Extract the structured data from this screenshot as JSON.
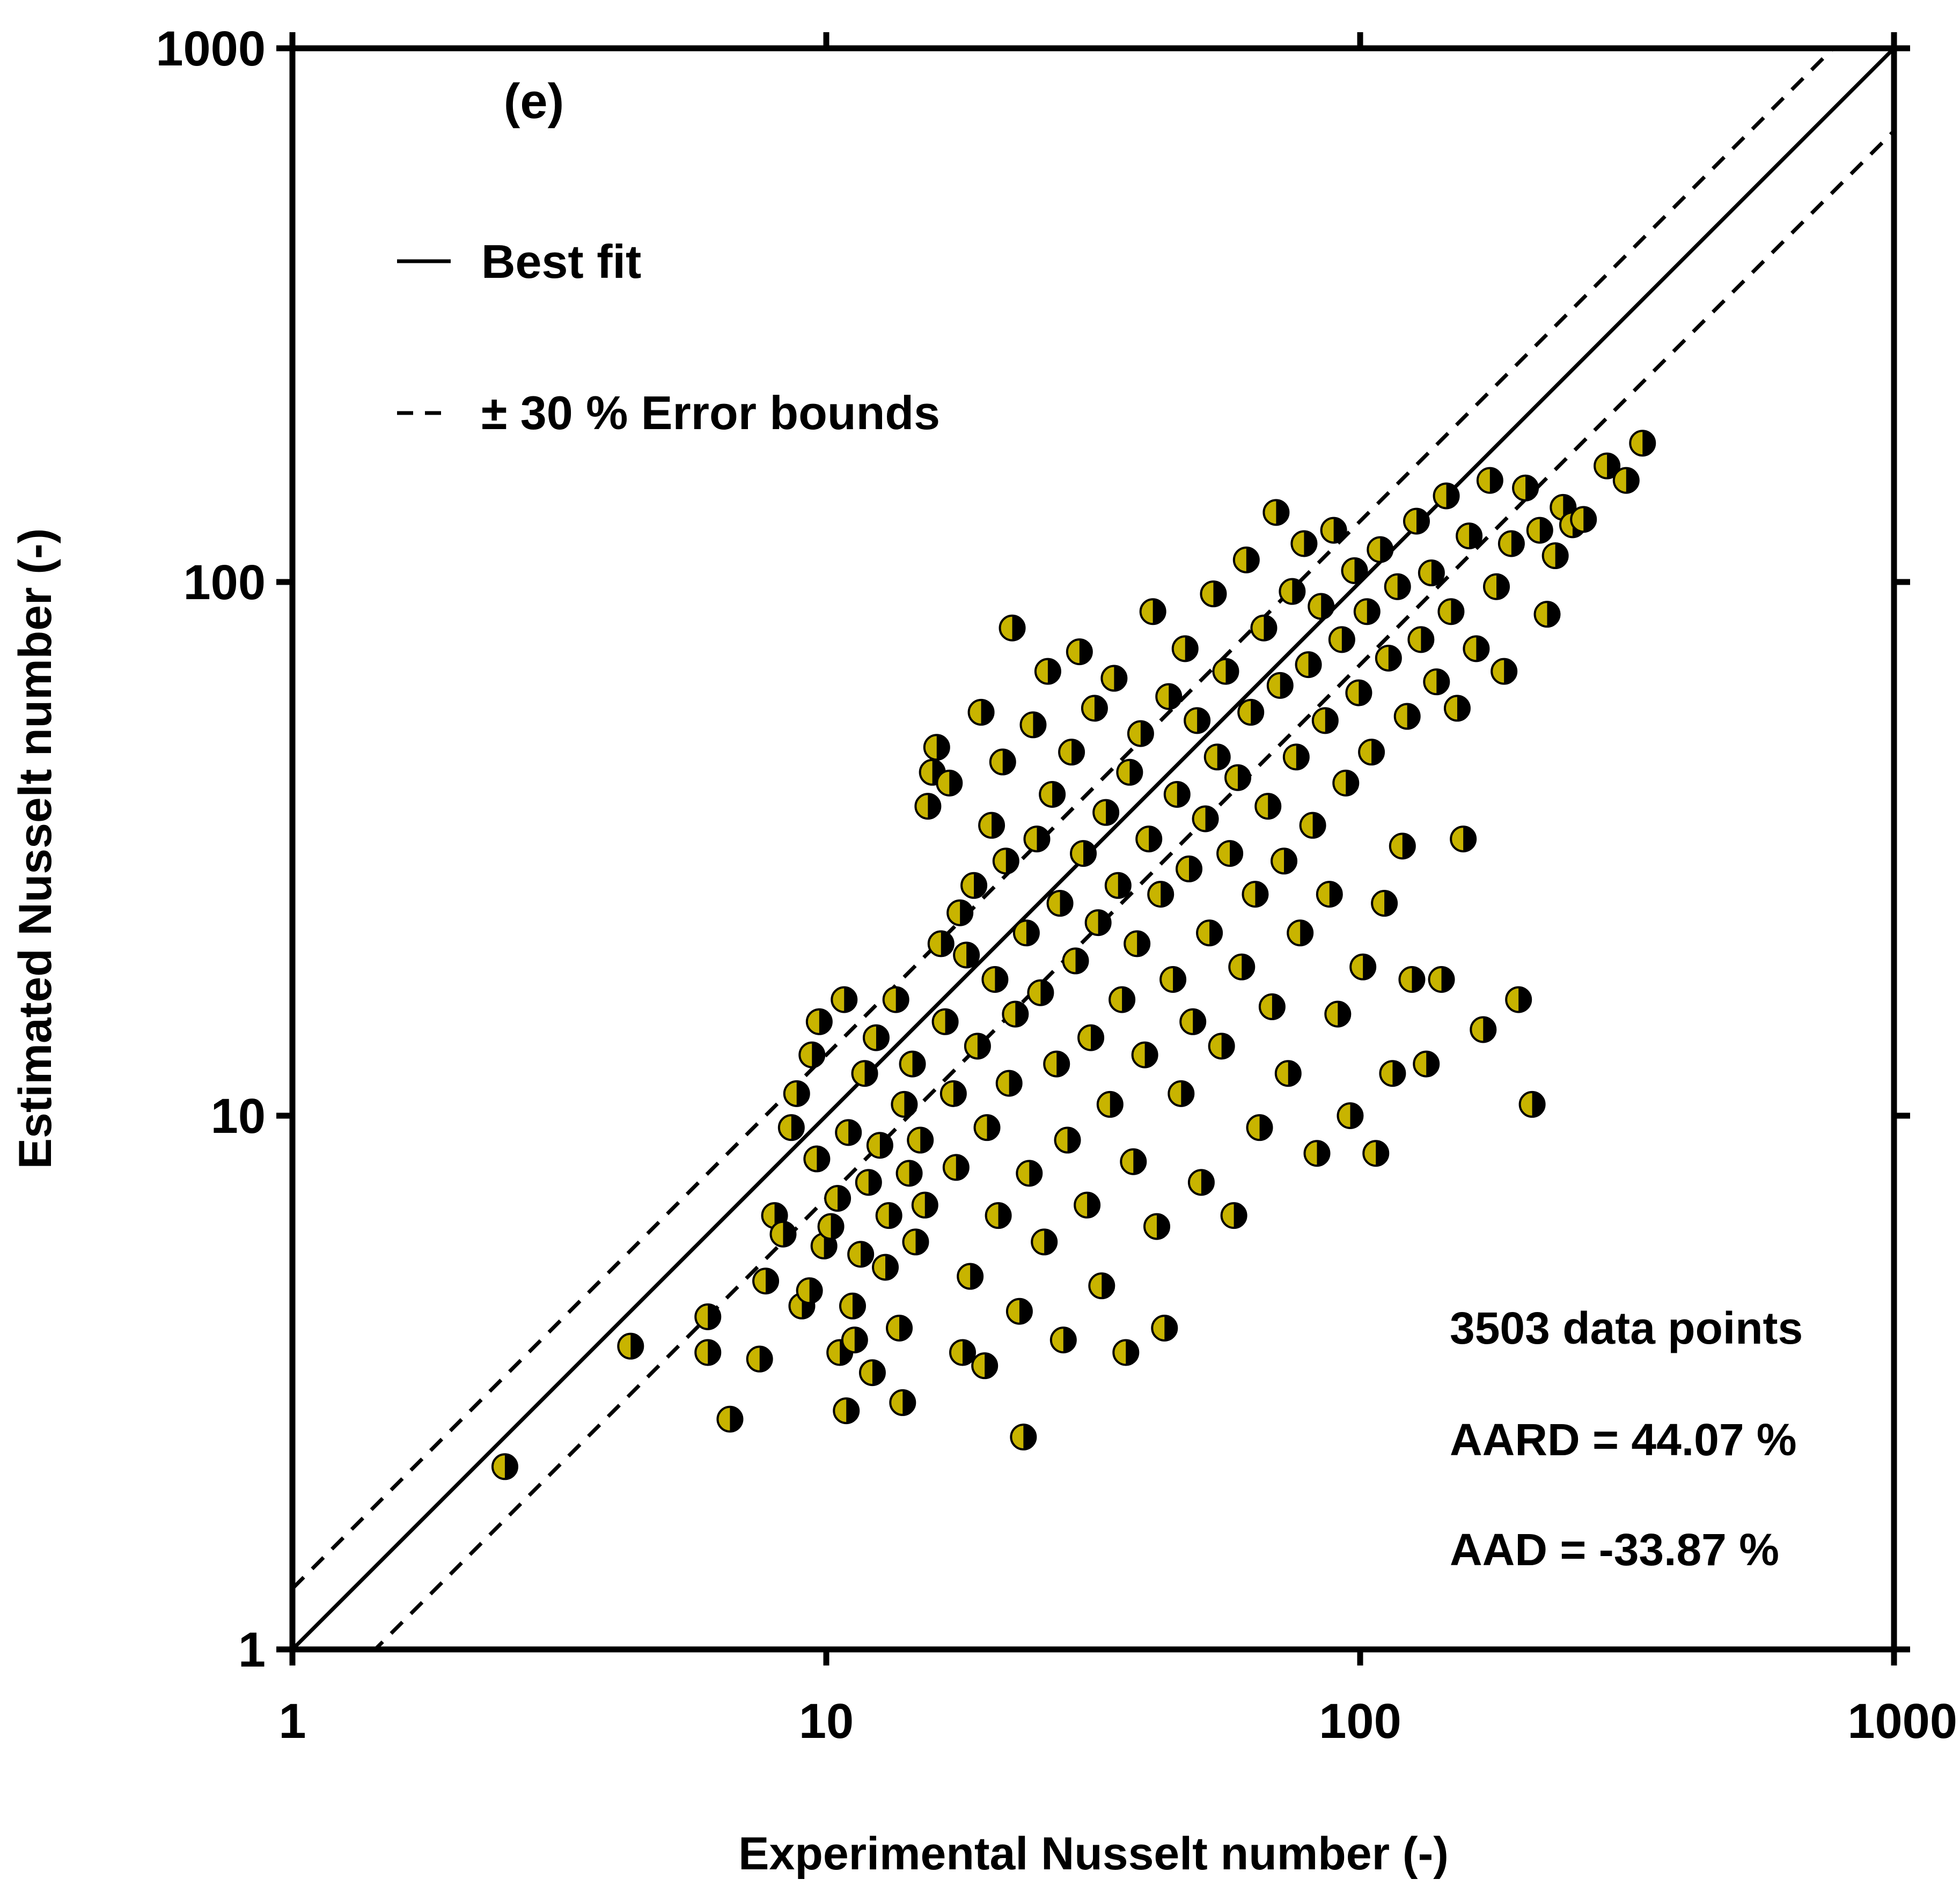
{
  "chart_data": {
    "type": "scatter",
    "panel_label": "(e)",
    "xlabel": "Experimental Nusselt number (-)",
    "ylabel": "Estimated Nusselt number (-)",
    "xscale": "log",
    "yscale": "log",
    "xlim": [
      1,
      1000
    ],
    "ylim": [
      1,
      1000
    ],
    "x_ticks": [
      "1",
      "10",
      "100",
      "1000"
    ],
    "y_ticks": [
      "1",
      "10",
      "100",
      "1000"
    ],
    "grid": false,
    "legend": {
      "placement": "top-left",
      "entries": [
        {
          "label": "Best fit",
          "style": "solid"
        },
        {
          "label": "± 30 % Error bounds",
          "style": "dashed"
        }
      ]
    },
    "reference_lines": [
      {
        "name": "Best fit",
        "slope": 1.0,
        "style": "solid"
      },
      {
        "name": "+30 %",
        "slope": 1.3,
        "style": "dashed"
      },
      {
        "name": "-30 %",
        "slope": 0.7,
        "style": "dashed"
      }
    ],
    "annotations": [
      "3503 data points",
      "AARD = 44.07 %",
      "AAD = -33.87 %"
    ],
    "marker": {
      "fill_left": "#c8b400",
      "fill_right": "#000000",
      "edge": "#000000"
    },
    "series": [
      {
        "points": [
          [
            2.5,
            2.2
          ],
          [
            4.3,
            3.7
          ],
          [
            6.0,
            4.2
          ],
          [
            6.0,
            3.6
          ],
          [
            6.6,
            2.7
          ],
          [
            7.5,
            3.5
          ],
          [
            7.7,
            4.9
          ],
          [
            8.0,
            6.5
          ],
          [
            8.3,
            6.0
          ],
          [
            8.6,
            9.5
          ],
          [
            8.8,
            11.0
          ],
          [
            9.0,
            4.4
          ],
          [
            9.3,
            4.7
          ],
          [
            9.4,
            13.0
          ],
          [
            9.6,
            8.3
          ],
          [
            9.7,
            15.0
          ],
          [
            9.9,
            5.7
          ],
          [
            10.2,
            6.2
          ],
          [
            10.5,
            7.0
          ],
          [
            10.6,
            3.6
          ],
          [
            10.8,
            16.5
          ],
          [
            10.9,
            2.8
          ],
          [
            11.0,
            9.3
          ],
          [
            11.2,
            4.4
          ],
          [
            11.3,
            3.8
          ],
          [
            11.6,
            5.5
          ],
          [
            11.8,
            12.0
          ],
          [
            12.0,
            7.5
          ],
          [
            12.2,
            3.3
          ],
          [
            12.4,
            14.0
          ],
          [
            12.6,
            8.8
          ],
          [
            12.9,
            5.2
          ],
          [
            13.1,
            6.5
          ],
          [
            13.5,
            16.5
          ],
          [
            13.7,
            4.0
          ],
          [
            13.9,
            2.9
          ],
          [
            14.0,
            10.5
          ],
          [
            14.3,
            7.8
          ],
          [
            14.5,
            12.5
          ],
          [
            14.7,
            5.8
          ],
          [
            15.0,
            9.0
          ],
          [
            15.3,
            6.8
          ],
          [
            15.5,
            38.0
          ],
          [
            15.8,
            44.0
          ],
          [
            16.1,
            49.0
          ],
          [
            16.4,
            21.0
          ],
          [
            16.7,
            15.0
          ],
          [
            17.0,
            42.0
          ],
          [
            17.3,
            11.0
          ],
          [
            17.5,
            8.0
          ],
          [
            17.8,
            24.0
          ],
          [
            18.0,
            3.6
          ],
          [
            18.3,
            20.0
          ],
          [
            18.6,
            5.0
          ],
          [
            18.9,
            27.0
          ],
          [
            19.2,
            13.5
          ],
          [
            19.5,
            57.0
          ],
          [
            19.8,
            3.4
          ],
          [
            20.0,
            9.5
          ],
          [
            20.4,
            35.0
          ],
          [
            20.7,
            18.0
          ],
          [
            21.0,
            6.5
          ],
          [
            21.4,
            46.0
          ],
          [
            21.7,
            30.0
          ],
          [
            22.0,
            11.5
          ],
          [
            22.3,
            82.0
          ],
          [
            22.6,
            15.5
          ],
          [
            23.0,
            4.3
          ],
          [
            23.4,
            2.5
          ],
          [
            23.7,
            22.0
          ],
          [
            24.0,
            7.8
          ],
          [
            24.4,
            54.0
          ],
          [
            24.8,
            33.0
          ],
          [
            25.2,
            17.0
          ],
          [
            25.6,
            5.8
          ],
          [
            26.0,
            68.0
          ],
          [
            26.5,
            40.0
          ],
          [
            27.0,
            12.5
          ],
          [
            27.4,
            25.0
          ],
          [
            27.8,
            3.8
          ],
          [
            28.3,
            9.0
          ],
          [
            28.8,
            48.0
          ],
          [
            29.3,
            19.5
          ],
          [
            29.8,
            74.0
          ],
          [
            30.3,
            31.0
          ],
          [
            30.8,
            6.8
          ],
          [
            31.3,
            14.0
          ],
          [
            31.8,
            58.0
          ],
          [
            32.3,
            23.0
          ],
          [
            32.8,
            4.8
          ],
          [
            33.4,
            37.0
          ],
          [
            34.0,
            10.5
          ],
          [
            34.6,
            66.0
          ],
          [
            35.2,
            27.0
          ],
          [
            35.8,
            16.5
          ],
          [
            36.4,
            3.6
          ],
          [
            37.0,
            44.0
          ],
          [
            37.6,
            8.2
          ],
          [
            38.2,
            21.0
          ],
          [
            38.8,
            52.0
          ],
          [
            39.5,
            13.0
          ],
          [
            40.2,
            33.0
          ],
          [
            40.9,
            88.0
          ],
          [
            41.6,
            6.2
          ],
          [
            42.3,
            26.0
          ],
          [
            43.0,
            4.0
          ],
          [
            43.8,
            61.0
          ],
          [
            44.6,
            18.0
          ],
          [
            45.4,
            40.0
          ],
          [
            46.2,
            11.0
          ],
          [
            47.0,
            75.0
          ],
          [
            47.8,
            29.0
          ],
          [
            48.6,
            15.0
          ],
          [
            49.5,
            55.0
          ],
          [
            50.4,
            7.5
          ],
          [
            51.3,
            36.0
          ],
          [
            52.2,
            22.0
          ],
          [
            53.1,
            95.0
          ],
          [
            54.0,
            47.0
          ],
          [
            55.0,
            13.5
          ],
          [
            56.0,
            68.0
          ],
          [
            57.0,
            31.0
          ],
          [
            58.0,
            6.5
          ],
          [
            59.0,
            43.0
          ],
          [
            60.0,
            19.0
          ],
          [
            61.2,
            110.0
          ],
          [
            62.4,
            57.0
          ],
          [
            63.6,
            26.0
          ],
          [
            64.8,
            9.5
          ],
          [
            66.0,
            82.0
          ],
          [
            67.2,
            38.0
          ],
          [
            68.4,
            16.0
          ],
          [
            69.6,
            135.0
          ],
          [
            70.8,
            64.0
          ],
          [
            72.0,
            30.0
          ],
          [
            73.3,
            12.0
          ],
          [
            74.6,
            96.0
          ],
          [
            75.9,
            47.0
          ],
          [
            77.2,
            22.0
          ],
          [
            78.5,
            118.0
          ],
          [
            80.0,
            70.0
          ],
          [
            81.5,
            35.0
          ],
          [
            83.0,
            8.5
          ],
          [
            84.5,
            90.0
          ],
          [
            86.0,
            55.0
          ],
          [
            87.6,
            26.0
          ],
          [
            89.2,
            125.0
          ],
          [
            90.8,
            15.5
          ],
          [
            92.4,
            78.0
          ],
          [
            94.0,
            42.0
          ],
          [
            95.8,
            10.0
          ],
          [
            97.6,
            105.0
          ],
          [
            99.4,
            62.0
          ],
          [
            101.2,
            19.0
          ],
          [
            103.0,
            88.0
          ],
          [
            105.0,
            48.0
          ],
          [
            107.0,
            8.5
          ],
          [
            109.0,
            115.0
          ],
          [
            111.0,
            25.0
          ],
          [
            113.0,
            72.0
          ],
          [
            115.0,
            12.0
          ],
          [
            117.5,
            98.0
          ],
          [
            120.0,
            32.0
          ],
          [
            122.5,
            56.0
          ],
          [
            125.0,
            18.0
          ],
          [
            127.5,
            130.0
          ],
          [
            130.0,
            78.0
          ],
          [
            133.0,
            12.5
          ],
          [
            136.0,
            104.0
          ],
          [
            139.0,
            65.0
          ],
          [
            142.0,
            18.0
          ],
          [
            145.0,
            145.0
          ],
          [
            148.0,
            88.0
          ],
          [
            152.0,
            58.0
          ],
          [
            156.0,
            33.0
          ],
          [
            160.0,
            122.0
          ],
          [
            165.0,
            75.0
          ],
          [
            170.0,
            14.5
          ],
          [
            175.0,
            155.0
          ],
          [
            180.0,
            98.0
          ],
          [
            186.0,
            68.0
          ],
          [
            192.0,
            118.0
          ],
          [
            198.0,
            16.5
          ],
          [
            204.0,
            150.0
          ],
          [
            210.0,
            10.5
          ],
          [
            217.0,
            125.0
          ],
          [
            224.0,
            87.0
          ],
          [
            232.0,
            112.0
          ],
          [
            240.0,
            138.0
          ],
          [
            250.0,
            128.0
          ],
          [
            262.0,
            131.0
          ],
          [
            290.0,
            165.0
          ],
          [
            315.0,
            155.0
          ],
          [
            338.0,
            182.0
          ]
        ]
      }
    ]
  }
}
